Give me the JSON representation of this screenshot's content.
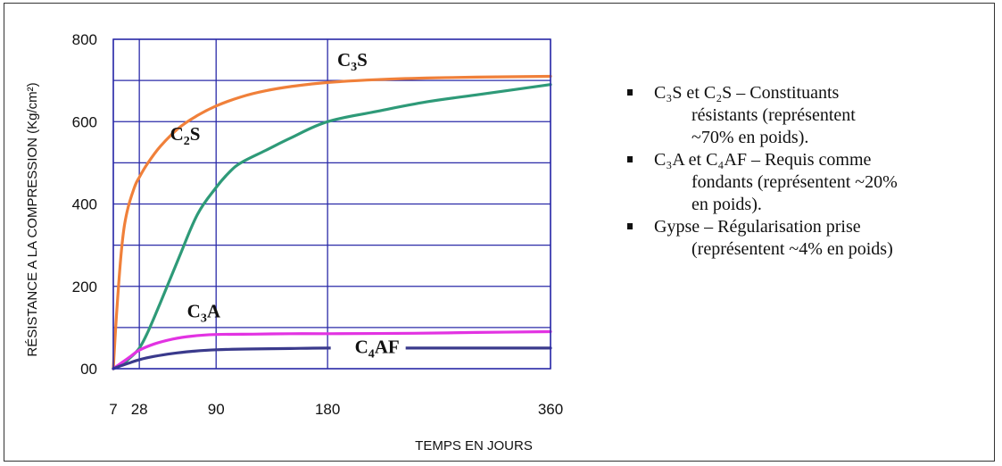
{
  "chart_data": {
    "type": "line",
    "ylabel": "RÉSISTANCE A LA COMPRESSION  (Kg/cm²)",
    "xlabel": "TEMPS EN JOURS",
    "x_ticks": [
      7,
      28,
      90,
      180,
      360
    ],
    "y_ticks": [
      0,
      200,
      400,
      600,
      800
    ],
    "y_tick_labels": [
      "00",
      "200",
      "400",
      "600",
      "800"
    ],
    "xlim": [
      7,
      360
    ],
    "ylim": [
      0,
      800
    ],
    "grid": true,
    "series": [
      {
        "name": "C3S",
        "color": "#f0803a",
        "x": [
          7,
          10,
          14,
          18,
          24,
          28,
          35,
          45,
          60,
          75,
          90,
          110,
          130,
          150,
          180,
          220,
          260,
          300,
          360
        ],
        "y": [
          0,
          150,
          300,
          380,
          440,
          465,
          500,
          540,
          585,
          615,
          638,
          660,
          675,
          685,
          695,
          702,
          706,
          708,
          710
        ]
      },
      {
        "name": "C2S",
        "color": "#2e9a78",
        "x": [
          7,
          14,
          20,
          28,
          35,
          45,
          60,
          75,
          90,
          100,
          110,
          130,
          150,
          180,
          220,
          260,
          300,
          360
        ],
        "y": [
          0,
          10,
          25,
          50,
          90,
          160,
          270,
          375,
          440,
          475,
          500,
          530,
          560,
          600,
          625,
          648,
          665,
          690
        ]
      },
      {
        "name": "C3A",
        "color": "#e233e2",
        "x": [
          7,
          14,
          21,
          28,
          40,
          55,
          70,
          90,
          120,
          150,
          180,
          250,
          300,
          360
        ],
        "y": [
          0,
          15,
          30,
          45,
          60,
          72,
          79,
          83,
          84,
          85,
          85,
          86,
          88,
          90
        ]
      },
      {
        "name": "C4AF",
        "color": "#3a3a8c",
        "x": [
          7,
          14,
          21,
          28,
          40,
          55,
          70,
          90,
          120,
          150,
          180,
          250,
          300,
          360
        ],
        "y": [
          0,
          8,
          15,
          22,
          30,
          37,
          42,
          46,
          48,
          49,
          50,
          50,
          50,
          50
        ]
      }
    ],
    "labels": [
      {
        "main": "C",
        "sub": "3",
        "tail": "S"
      },
      {
        "main": "C",
        "sub": "2",
        "tail": "S"
      },
      {
        "main": "C",
        "sub": "3",
        "tail": "A"
      },
      {
        "main": "C",
        "sub": "4",
        "tail": "AF"
      }
    ]
  },
  "notes": [
    {
      "line1": "C₃S et C₂S – Constituants",
      "rest": [
        "résistants (représentent",
        "~70% en poids)."
      ]
    },
    {
      "line1": "C₃A et C₄AF – Requis comme",
      "rest": [
        "fondants (représentent ~20%",
        "en poids)."
      ]
    },
    {
      "line1": "Gypse – Régularisation prise",
      "rest": [
        "(représentent ~4% en poids)"
      ]
    }
  ]
}
